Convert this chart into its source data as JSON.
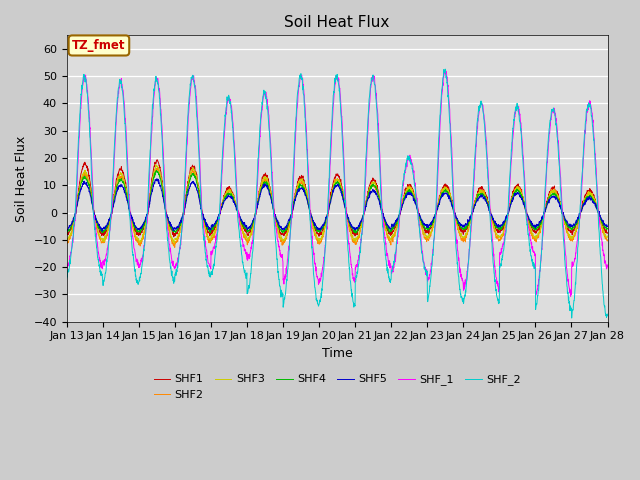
{
  "title": "Soil Heat Flux",
  "xlabel": "Time",
  "ylabel": "Soil Heat Flux",
  "ylim": [
    -40,
    65
  ],
  "yticks": [
    -40,
    -30,
    -20,
    -10,
    0,
    10,
    20,
    30,
    40,
    50,
    60
  ],
  "series_colors": {
    "SHF1": "#cc0000",
    "SHF2": "#ff8800",
    "SHF3": "#cccc00",
    "SHF4": "#00bb00",
    "SHF5": "#0000cc",
    "SHF_1": "#ff00ff",
    "SHF_2": "#00cccc"
  },
  "annotation_text": "TZ_fmet",
  "annotation_box_color": "#ffffcc",
  "annotation_text_color": "#cc0000",
  "annotation_border_color": "#996600",
  "plot_bg_color": "#dddddd",
  "fig_bg_color": "#cccccc",
  "x_tick_labels": [
    "Jan 13",
    "Jan 14",
    "Jan 15",
    "Jan 16",
    "Jan 17",
    "Jan 18",
    "Jan 19",
    "Jan 20",
    "Jan 21",
    "Jan 22",
    "Jan 23",
    "Jan 24",
    "Jan 25",
    "Jan 26",
    "Jan 27",
    "Jan 28"
  ],
  "n_days": 15,
  "n_points": 2160
}
